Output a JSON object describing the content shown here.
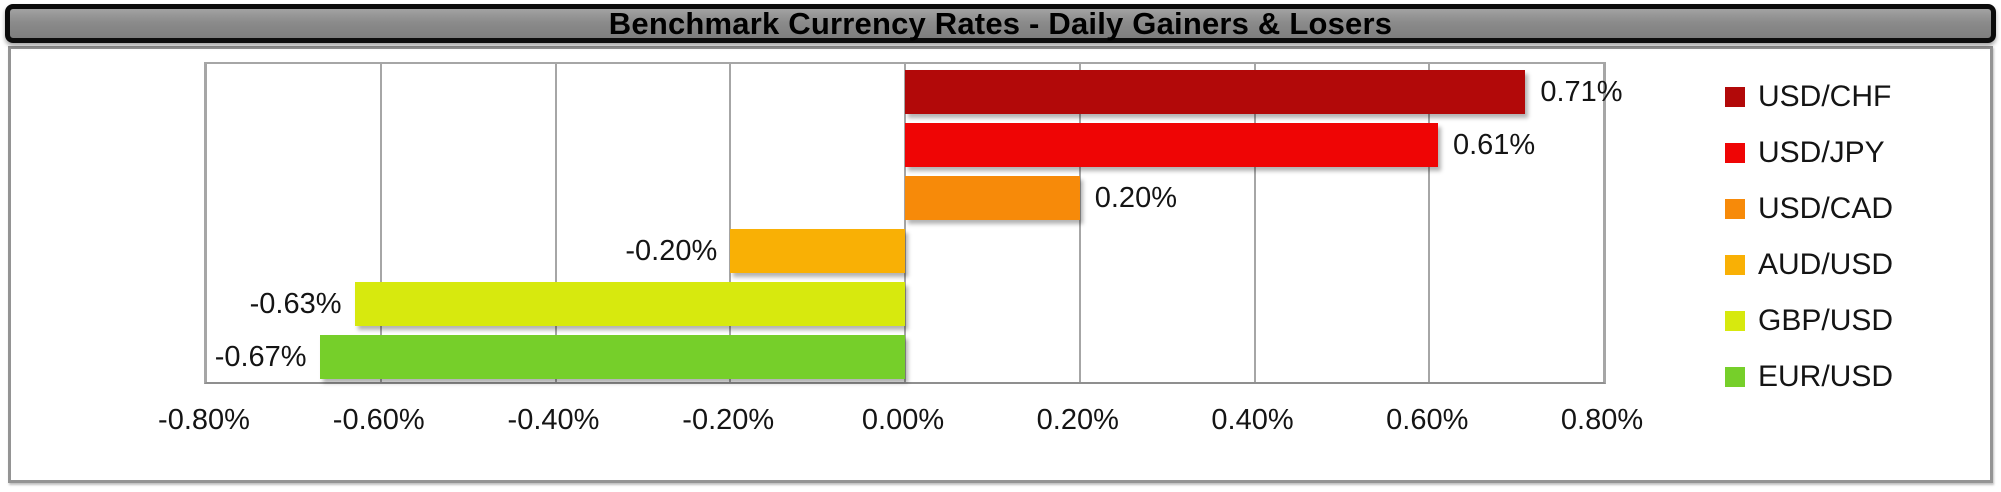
{
  "title_bar": {
    "text": "Benchmark Currency Rates - Daily Gainers & Losers"
  },
  "colors": {
    "title_bar_fill": "#8b8b8b",
    "title_bar_border": "#0c0c0c",
    "container_border": "#949494",
    "gridline": "#a6a6a6",
    "text": "#141414"
  },
  "chart_data": {
    "type": "bar",
    "orientation": "horizontal",
    "title": "Benchmark Currency Rates - Daily Gainers & Losers",
    "categories": [
      "USD/CHF",
      "USD/JPY",
      "USD/CAD",
      "AUD/USD",
      "GBP/USD",
      "EUR/USD"
    ],
    "values": [
      0.71,
      0.61,
      0.2,
      -0.2,
      -0.63,
      -0.67
    ],
    "value_labels": [
      "0.71%",
      "0.61%",
      "0.20%",
      "-0.20%",
      "-0.63%",
      "-0.67%"
    ],
    "bar_colors": [
      "#b20909",
      "#ef0505",
      "#f78a09",
      "#f9b005",
      "#d7e90e",
      "#76cf2a"
    ],
    "xlim": [
      -0.8,
      0.8
    ],
    "x_ticks": [
      -0.8,
      -0.6,
      -0.4,
      -0.2,
      0,
      0.2,
      0.4,
      0.6,
      0.8
    ],
    "x_tick_labels": [
      "-0.80%",
      "-0.60%",
      "-0.40%",
      "-0.20%",
      "0.00%",
      "0.20%",
      "0.40%",
      "0.60%",
      "0.80%"
    ],
    "grid": true,
    "legend_position": "right",
    "legend": [
      {
        "label": "USD/CHF",
        "color": "#b20909"
      },
      {
        "label": "USD/JPY",
        "color": "#ef0505"
      },
      {
        "label": "USD/CAD",
        "color": "#f78a09"
      },
      {
        "label": "AUD/USD",
        "color": "#f9b005"
      },
      {
        "label": "GBP/USD",
        "color": "#d7e90e"
      },
      {
        "label": "EUR/USD",
        "color": "#76cf2a"
      }
    ]
  }
}
